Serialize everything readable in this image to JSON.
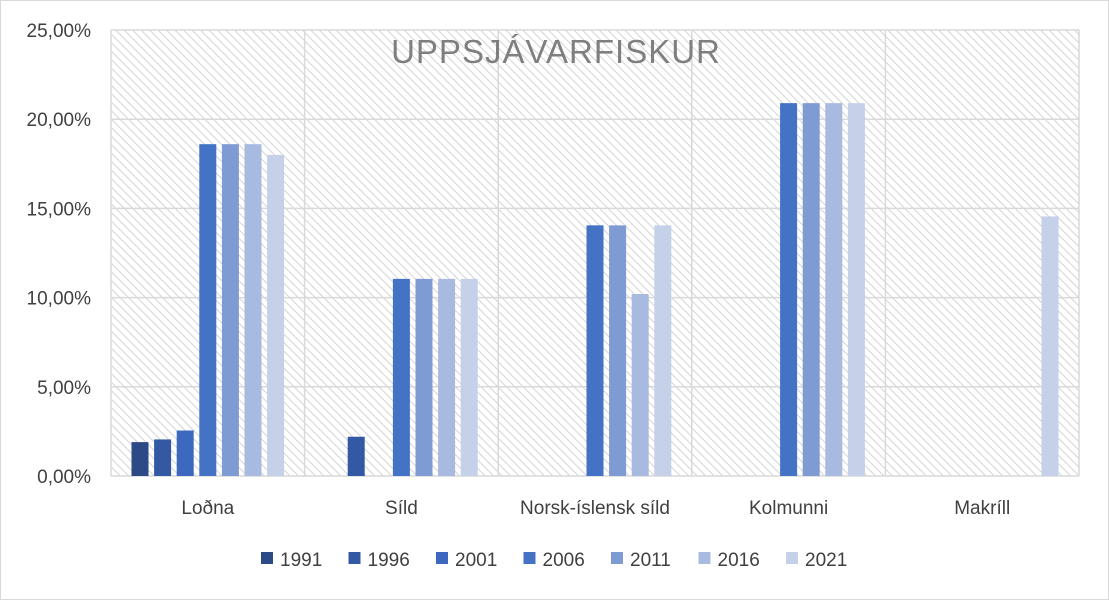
{
  "chart_data": {
    "type": "bar",
    "title": "UPPSJÁVARFISKUR",
    "categories": [
      "Loðna",
      "Síld",
      "Norsk-íslensk síld",
      "Kolmunni",
      "Makríll"
    ],
    "ylim": [
      0,
      25
    ],
    "yticks": [
      0,
      5,
      10,
      15,
      20,
      25
    ],
    "ytick_labels": [
      "0,00%",
      "5,00%",
      "10,00%",
      "15,00%",
      "20,00%",
      "25,00%"
    ],
    "grid": true,
    "legend_position": "bottom",
    "series": [
      {
        "name": "1991",
        "color": "#2b4a86",
        "values": [
          1.9,
          null,
          null,
          null,
          null
        ]
      },
      {
        "name": "1996",
        "color": "#3359a5",
        "values": [
          2.05,
          2.2,
          null,
          null,
          null
        ]
      },
      {
        "name": "2001",
        "color": "#3d68bf",
        "values": [
          2.55,
          null,
          null,
          null,
          null
        ]
      },
      {
        "name": "2006",
        "color": "#4472c4",
        "values": [
          18.6,
          11.05,
          14.05,
          20.9,
          null
        ]
      },
      {
        "name": "2011",
        "color": "#7f9bd3",
        "values": [
          18.6,
          11.05,
          14.05,
          20.9,
          null
        ]
      },
      {
        "name": "2016",
        "color": "#a8badf",
        "values": [
          18.6,
          11.05,
          10.2,
          20.9,
          null
        ]
      },
      {
        "name": "2021",
        "color": "#c5d0e9",
        "values": [
          18.0,
          11.05,
          14.05,
          20.9,
          14.55
        ]
      }
    ]
  }
}
